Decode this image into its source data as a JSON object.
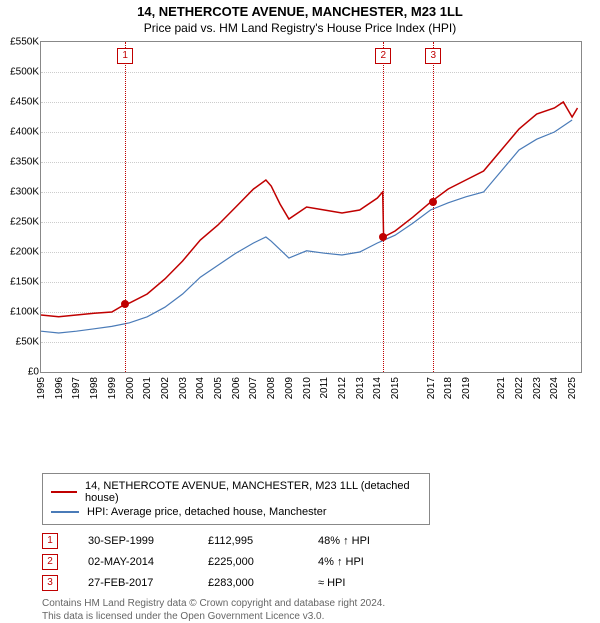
{
  "title": "14, NETHERCOTE AVENUE, MANCHESTER, M23 1LL",
  "subtitle": "Price paid vs. HM Land Registry's House Price Index (HPI)",
  "chart": {
    "type": "line",
    "xlim": [
      1995,
      2025.5
    ],
    "ylim": [
      0,
      550000
    ],
    "ytick_step": 50000,
    "y_prefix": "£",
    "y_suffix": "K",
    "y_divisor": 1000,
    "background_color": "#ffffff",
    "grid_color": "#cccccc",
    "border_color": "#888888",
    "x_labels": [
      1995,
      1996,
      1997,
      1998,
      1999,
      2000,
      2001,
      2002,
      2003,
      2004,
      2005,
      2006,
      2007,
      2008,
      2009,
      2010,
      2011,
      2012,
      2013,
      2014,
      2015,
      2017,
      2018,
      2019,
      2021,
      2022,
      2023,
      2024,
      2025
    ],
    "series": [
      {
        "name": "price_paid",
        "label": "14, NETHERCOTE AVENUE, MANCHESTER, M23 1LL (detached house)",
        "color": "#c00000",
        "line_width": 1.5,
        "data": [
          [
            1995,
            95000
          ],
          [
            1996,
            92000
          ],
          [
            1997,
            95000
          ],
          [
            1998,
            98000
          ],
          [
            1999,
            100000
          ],
          [
            1999.75,
            112995
          ],
          [
            2000,
            115000
          ],
          [
            2001,
            130000
          ],
          [
            2002,
            155000
          ],
          [
            2003,
            185000
          ],
          [
            2004,
            220000
          ],
          [
            2005,
            245000
          ],
          [
            2006,
            275000
          ],
          [
            2007,
            305000
          ],
          [
            2007.7,
            320000
          ],
          [
            2008,
            310000
          ],
          [
            2008.5,
            280000
          ],
          [
            2009,
            255000
          ],
          [
            2010,
            275000
          ],
          [
            2011,
            270000
          ],
          [
            2012,
            265000
          ],
          [
            2013,
            270000
          ],
          [
            2014,
            290000
          ],
          [
            2014.3,
            300000
          ],
          [
            2014.35,
            225000
          ],
          [
            2015,
            235000
          ],
          [
            2016,
            258000
          ],
          [
            2017,
            283000
          ],
          [
            2018,
            305000
          ],
          [
            2019,
            320000
          ],
          [
            2020,
            335000
          ],
          [
            2021,
            370000
          ],
          [
            2022,
            405000
          ],
          [
            2023,
            430000
          ],
          [
            2024,
            440000
          ],
          [
            2024.5,
            450000
          ],
          [
            2025,
            425000
          ],
          [
            2025.3,
            440000
          ]
        ]
      },
      {
        "name": "hpi",
        "label": "HPI: Average price, detached house, Manchester",
        "color": "#4a7bb8",
        "line_width": 1.2,
        "data": [
          [
            1995,
            68000
          ],
          [
            1996,
            65000
          ],
          [
            1997,
            68000
          ],
          [
            1998,
            72000
          ],
          [
            1999,
            76000
          ],
          [
            2000,
            82000
          ],
          [
            2001,
            92000
          ],
          [
            2002,
            108000
          ],
          [
            2003,
            130000
          ],
          [
            2004,
            158000
          ],
          [
            2005,
            178000
          ],
          [
            2006,
            198000
          ],
          [
            2007,
            215000
          ],
          [
            2007.7,
            225000
          ],
          [
            2008,
            218000
          ],
          [
            2009,
            190000
          ],
          [
            2010,
            202000
          ],
          [
            2011,
            198000
          ],
          [
            2012,
            195000
          ],
          [
            2013,
            200000
          ],
          [
            2014,
            215000
          ],
          [
            2015,
            228000
          ],
          [
            2016,
            248000
          ],
          [
            2017,
            270000
          ],
          [
            2018,
            282000
          ],
          [
            2019,
            292000
          ],
          [
            2020,
            300000
          ],
          [
            2021,
            335000
          ],
          [
            2022,
            370000
          ],
          [
            2023,
            388000
          ],
          [
            2024,
            400000
          ],
          [
            2025,
            420000
          ]
        ]
      }
    ],
    "markers": [
      {
        "n": "1",
        "x": 1999.75,
        "y": 112995,
        "color": "#c00000"
      },
      {
        "n": "2",
        "x": 2014.33,
        "y": 225000,
        "color": "#c00000"
      },
      {
        "n": "3",
        "x": 2017.16,
        "y": 283000,
        "color": "#c00000"
      }
    ]
  },
  "legend": {
    "entries": [
      {
        "color": "#c00000",
        "label": "14, NETHERCOTE AVENUE, MANCHESTER, M23 1LL (detached house)"
      },
      {
        "color": "#4a7bb8",
        "label": "HPI: Average price, detached house, Manchester"
      }
    ]
  },
  "sales": [
    {
      "n": "1",
      "date": "30-SEP-1999",
      "price": "£112,995",
      "diff": "48% ↑ HPI"
    },
    {
      "n": "2",
      "date": "02-MAY-2014",
      "price": "£225,000",
      "diff": "4% ↑ HPI"
    },
    {
      "n": "3",
      "date": "27-FEB-2017",
      "price": "£283,000",
      "diff": "≈ HPI"
    }
  ],
  "footnote_line1": "Contains HM Land Registry data © Crown copyright and database right 2024.",
  "footnote_line2": "This data is licensed under the Open Government Licence v3.0."
}
